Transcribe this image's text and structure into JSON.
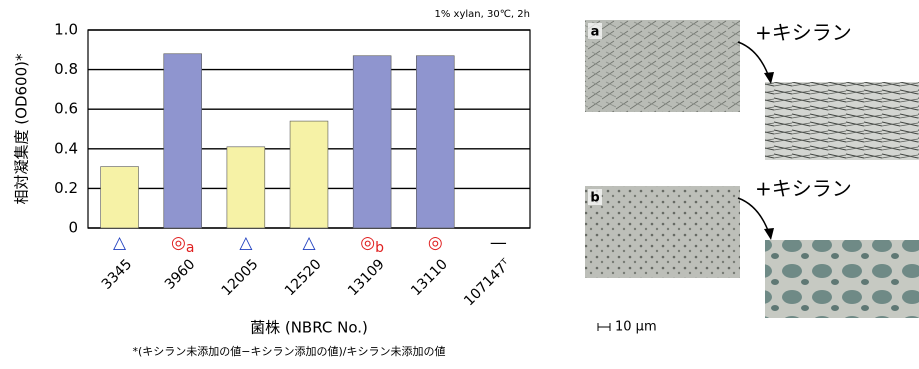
{
  "chart_data": {
    "type": "bar",
    "annotation": "1% xylan, 30℃, 2h",
    "y_label": "相対凝集度 (OD600)*",
    "x_label": "菌株 (NBRC No.)",
    "footnote": "*(キシラン未添加の値−キシラン添加の値)/キシラン未添加の値",
    "categories": [
      "3345",
      "3960",
      "12005",
      "12520",
      "13109",
      "13110",
      "107147ᵀ"
    ],
    "values": [
      0.31,
      0.88,
      0.41,
      0.54,
      0.87,
      0.87,
      0
    ],
    "colors": [
      "#f6f2a6",
      "#8f95cf",
      "#f6f2a6",
      "#f6f2a6",
      "#8f95cf",
      "#8f95cf",
      "#f6f2a6"
    ],
    "symbols": [
      "△",
      "◎",
      "△",
      "△",
      "◎",
      "◎",
      "—"
    ],
    "symbol_subscripts": [
      null,
      "a",
      null,
      null,
      "b",
      null,
      null
    ],
    "symbol_colors": [
      "#1f3fbf",
      "#e02020",
      "#1f3fbf",
      "#1f3fbf",
      "#e02020",
      "#e02020",
      "#000000"
    ],
    "ylim": [
      0,
      1
    ],
    "yticks": [
      0,
      0.2,
      0.4,
      0.6,
      0.8,
      {
        "value": 1,
        "label": "1.0"
      }
    ],
    "grid": true
  },
  "micrographs": {
    "panels": [
      {
        "label": "a",
        "treatment": "+キシラン"
      },
      {
        "label": "b",
        "treatment": "+キシラン"
      }
    ],
    "scale_bar": "10 µm"
  }
}
